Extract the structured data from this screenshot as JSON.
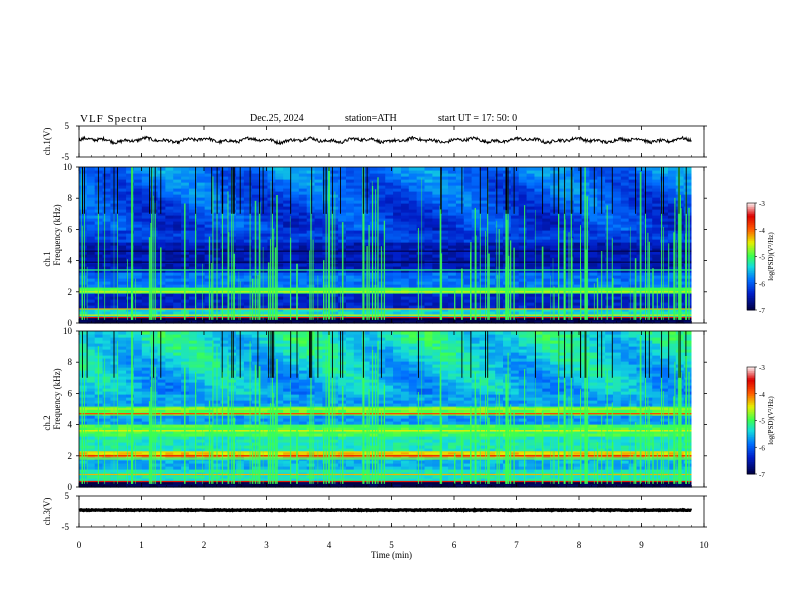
{
  "header": {
    "title": "VLF  Spectra",
    "date": "Dec.25, 2024",
    "station": "station=ATH",
    "start": "start  UT  =    17: 50: 0"
  },
  "chart_data": {
    "type": "heatmap",
    "x_axis": {
      "label": "Time  (min)",
      "range": [
        0,
        10
      ],
      "ticks": [
        "0",
        "1",
        "2",
        "3",
        "4",
        "5",
        "6",
        "7",
        "8",
        "9",
        "10"
      ]
    },
    "panels": [
      {
        "kind": "waveform",
        "ylabel": "ch.1(V)",
        "yticks": [
          "5",
          "-5"
        ],
        "ylim": [
          -5,
          5
        ],
        "data_end_min": 9.8
      },
      {
        "kind": "spectrogram",
        "ylabel_top": "ch.1",
        "ylabel": "Frequency  (kHz)",
        "yticks": [
          "0",
          "2",
          "4",
          "6",
          "8",
          "10"
        ],
        "ylim": [
          0,
          10
        ],
        "colorbar": {
          "label": "log(PSD)(V²/Hz)",
          "ticks": [
            "-3",
            "-4",
            "-5",
            "-6",
            "-7"
          ],
          "range": [
            -7,
            -3
          ]
        }
      },
      {
        "kind": "spectrogram",
        "ylabel_top": "ch.2",
        "ylabel": "Frequency  (kHz)",
        "yticks": [
          "0",
          "2",
          "4",
          "6",
          "8",
          "10"
        ],
        "ylim": [
          0,
          10
        ],
        "colorbar": {
          "label": "log(PSD)(V²/Hz)",
          "ticks": [
            "-3",
            "-4",
            "-5",
            "-6",
            "-7"
          ],
          "range": [
            -7,
            -3
          ]
        }
      },
      {
        "kind": "waveform",
        "ylabel": "ch.3(V)",
        "yticks": [
          "5",
          "-5"
        ],
        "ylim": [
          -5,
          5
        ],
        "data_end_min": 9.8
      }
    ],
    "colors": {
      "low": "#000060",
      "mid_low": "#0050ff",
      "mid": "#20e0c0",
      "mid_high": "#40ff40",
      "high": "#ffe000",
      "max": "#e00000"
    }
  }
}
